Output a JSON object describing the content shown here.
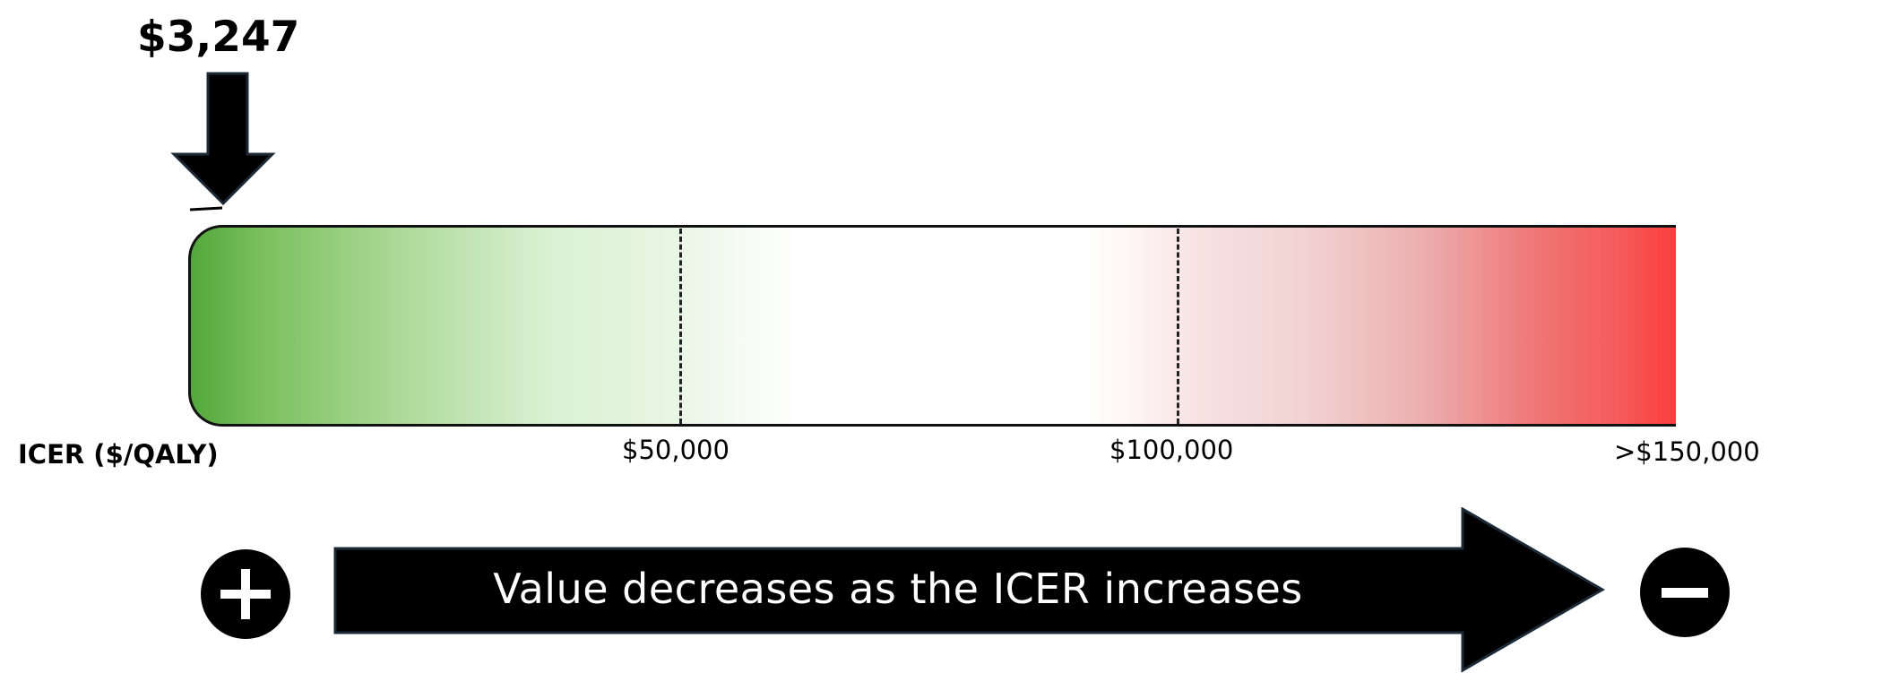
{
  "marker": {
    "value_label": "$3,247",
    "value": 3247
  },
  "scale": {
    "axis_title": "ICER ($/QALY)",
    "ticks": [
      "$50,000",
      "$100,000",
      ">$150,000"
    ],
    "thresholds": [
      50000,
      100000,
      150000
    ],
    "colors": {
      "good": "#52a83a",
      "neutral": "#ffffff",
      "bad": "#fb3e3e"
    }
  },
  "direction": {
    "text": "Value decreases as the ICER increases",
    "left_icon": "plus-icon",
    "right_icon": "minus-icon"
  }
}
